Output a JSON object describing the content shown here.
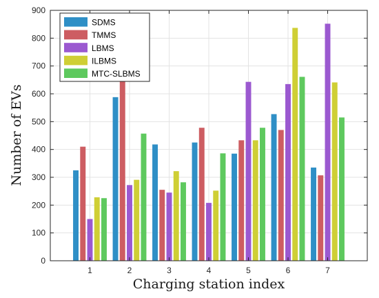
{
  "chart_data": {
    "type": "bar",
    "title": "",
    "xlabel": "Charging station index",
    "ylabel": "Number of EVs",
    "categories": [
      "1",
      "2",
      "3",
      "4",
      "5",
      "6",
      "7"
    ],
    "ylim": [
      0,
      900
    ],
    "yticks": [
      "0",
      "100",
      "200",
      "300",
      "400",
      "500",
      "600",
      "700",
      "800",
      "900"
    ],
    "grid": true,
    "legend_position": "top-left",
    "series": [
      {
        "name": "SDMS",
        "color": "#2f8fc6",
        "values": [
          325,
          588,
          418,
          425,
          385,
          527,
          335
        ]
      },
      {
        "name": "TMMS",
        "color": "#cd5d62",
        "values": [
          410,
          653,
          255,
          478,
          433,
          470,
          307
        ]
      },
      {
        "name": "LBMS",
        "color": "#9b59d0",
        "values": [
          150,
          272,
          245,
          208,
          643,
          635,
          852
        ]
      },
      {
        "name": "ILBMS",
        "color": "#cfcf35",
        "values": [
          228,
          291,
          322,
          252,
          433,
          837,
          641
        ]
      },
      {
        "name": "MTC-SLBMS",
        "color": "#5ec95e",
        "values": [
          225,
          457,
          282,
          386,
          478,
          661,
          515
        ]
      }
    ]
  }
}
